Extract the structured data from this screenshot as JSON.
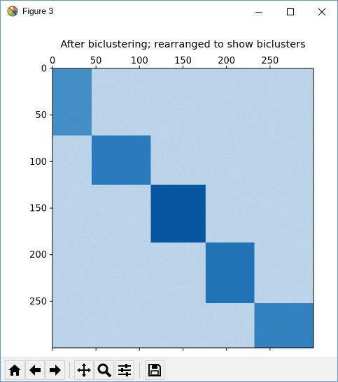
{
  "window": {
    "title": "Figure 3",
    "controls": [
      "minimize",
      "maximize",
      "close"
    ]
  },
  "toolbar": {
    "buttons": [
      {
        "icon": "home-icon",
        "tooltip": "Reset original view"
      },
      {
        "icon": "back-arrow-icon",
        "tooltip": "Back to previous view"
      },
      {
        "icon": "forward-arrow-icon",
        "tooltip": "Forward to next view"
      },
      {
        "icon": "pan-icon",
        "tooltip": "Pan axes"
      },
      {
        "icon": "zoom-icon",
        "tooltip": "Zoom to rectangle"
      },
      {
        "icon": "configure-subplots-icon",
        "tooltip": "Configure subplots"
      },
      {
        "icon": "save-icon",
        "tooltip": "Save the figure"
      }
    ]
  },
  "chart_data": {
    "type": "heatmap",
    "title": "After biclustering; rearranged to show biclusters",
    "xlabel": "",
    "ylabel": "",
    "xlim": [
      0,
      300
    ],
    "ylim": [
      300,
      0
    ],
    "x_ticks": [
      0,
      50,
      100,
      150,
      200,
      250
    ],
    "y_ticks": [
      0,
      50,
      100,
      150,
      200,
      250
    ],
    "x_tick_position": "top",
    "colormap": "Blues",
    "background_color": "#cfe1f2",
    "blocks": [
      {
        "rows": [
          0,
          72
        ],
        "cols": [
          0,
          45
        ],
        "color": "#4a94cb"
      },
      {
        "rows": [
          72,
          125
        ],
        "cols": [
          45,
          113
        ],
        "color": "#2f7ec1"
      },
      {
        "rows": [
          125,
          187
        ],
        "cols": [
          113,
          176
        ],
        "color": "#0a56a2"
      },
      {
        "rows": [
          187,
          252
        ],
        "cols": [
          176,
          232
        ],
        "color": "#2676ba"
      },
      {
        "rows": [
          252,
          300
        ],
        "cols": [
          232,
          300
        ],
        "color": "#3987c4"
      }
    ]
  }
}
